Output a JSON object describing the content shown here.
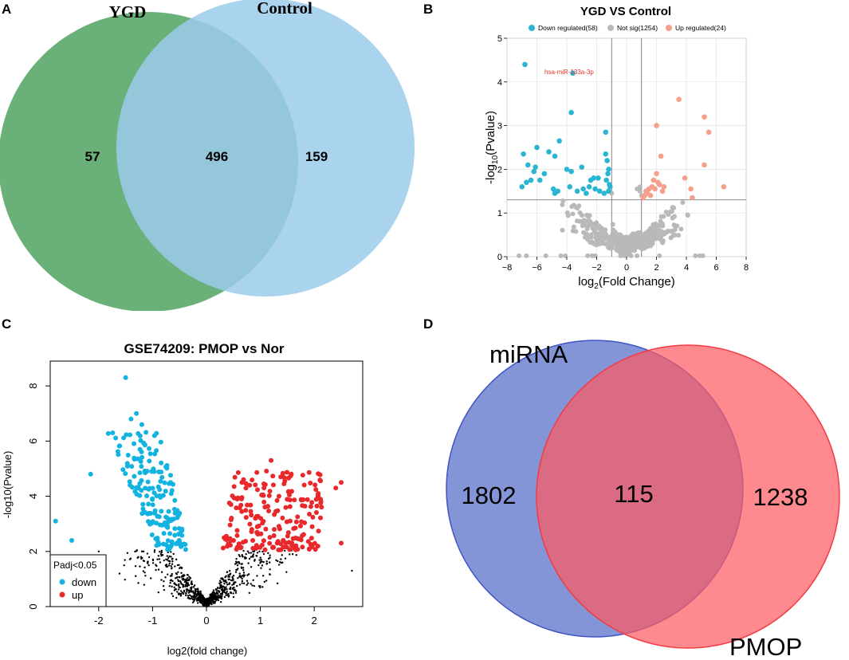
{
  "panels": {
    "a": "A",
    "b": "B",
    "c": "C",
    "d": "D"
  },
  "chart_data": [
    {
      "panel": "A",
      "type": "venn",
      "sets": [
        {
          "name": "YGD",
          "only": "57",
          "color": "#62ad72"
        },
        {
          "name": "Control",
          "only": "159",
          "color": "#9bcbea"
        }
      ],
      "intersection": "496"
    },
    {
      "panel": "B",
      "type": "scatter",
      "title": "YGD VS Control",
      "xlabel": "log2(Fold Change)",
      "ylabel": "-log10(Pvalue)",
      "xlim": [
        -8,
        8
      ],
      "ylim": [
        0,
        5
      ],
      "xticks": [
        "−8",
        "−6",
        "−4",
        "−2",
        "0",
        "2",
        "4",
        "6",
        "8"
      ],
      "yticks": [
        "0",
        "1",
        "2",
        "3",
        "4",
        "5"
      ],
      "thresholds": {
        "y": 1.3,
        "x": [
          -1,
          1
        ]
      },
      "legend": [
        {
          "label": "Down regulated(58)",
          "color": "#2bb5d3"
        },
        {
          "label": "Not sig(1254)",
          "color": "#b9b9b9"
        },
        {
          "label": "Up regulated(24)",
          "color": "#f4a08a"
        }
      ],
      "annotation": {
        "text": "hsa-miR-133a-3p",
        "x": -3.5,
        "y": 4.2,
        "color": "#e8322b"
      },
      "series": [
        {
          "name": "down",
          "color": "#2bb5d3",
          "points": [
            [
              -6.8,
              4.4
            ],
            [
              -3.6,
              4.2
            ],
            [
              -3.7,
              3.3
            ],
            [
              -1.4,
              2.85
            ],
            [
              -6.0,
              2.5
            ],
            [
              -4.5,
              2.65
            ],
            [
              -4.8,
              2.3
            ],
            [
              -5.2,
              2.4
            ],
            [
              -6.9,
              2.35
            ],
            [
              -6.6,
              2.1
            ],
            [
              -6.1,
              2.05
            ],
            [
              -6.2,
              1.95
            ],
            [
              -5.5,
              1.9
            ],
            [
              -4.0,
              2.0
            ],
            [
              -3.7,
              1.95
            ],
            [
              -3.0,
              2.05
            ],
            [
              -1.4,
              2.35
            ],
            [
              -1.3,
              2.2
            ],
            [
              -1.2,
              2.0
            ],
            [
              -1.25,
              1.9
            ],
            [
              -1.35,
              1.75
            ],
            [
              -1.15,
              1.65
            ],
            [
              -1.1,
              1.6
            ],
            [
              -1.2,
              1.5
            ],
            [
              -2.4,
              1.75
            ],
            [
              -2.2,
              1.8
            ],
            [
              -1.9,
              1.8
            ],
            [
              -6.4,
              1.75
            ],
            [
              -5.8,
              1.75
            ],
            [
              -6.7,
              1.7
            ],
            [
              -4.9,
              1.55
            ],
            [
              -4.6,
              1.5
            ],
            [
              -4.8,
              1.45
            ],
            [
              -2.9,
              1.55
            ],
            [
              -2.5,
              1.6
            ],
            [
              -2.1,
              1.55
            ],
            [
              -1.8,
              1.5
            ],
            [
              -1.5,
              1.45
            ],
            [
              -7.0,
              1.6
            ],
            [
              -3.8,
              1.6
            ],
            [
              -3.3,
              1.5
            ],
            [
              -2.7,
              1.45
            ]
          ]
        },
        {
          "name": "up",
          "color": "#f4a08a",
          "points": [
            [
              3.5,
              3.6
            ],
            [
              5.2,
              3.2
            ],
            [
              5.5,
              2.85
            ],
            [
              2.0,
              3.0
            ],
            [
              2.3,
              2.3
            ],
            [
              5.2,
              2.1
            ],
            [
              2.0,
              1.9
            ],
            [
              1.8,
              1.75
            ],
            [
              1.7,
              1.6
            ],
            [
              2.2,
              1.65
            ],
            [
              2.4,
              1.5
            ],
            [
              1.3,
              1.5
            ],
            [
              1.2,
              1.4
            ],
            [
              1.1,
              1.35
            ],
            [
              1.5,
              1.55
            ],
            [
              6.5,
              1.6
            ],
            [
              4.3,
              1.55
            ],
            [
              3.9,
              1.8
            ],
            [
              4.4,
              1.35
            ],
            [
              2.1,
              1.7
            ],
            [
              1.4,
              1.45
            ],
            [
              1.9,
              1.55
            ],
            [
              2.5,
              1.6
            ],
            [
              1.6,
              1.4
            ]
          ]
        }
      ]
    },
    {
      "panel": "C",
      "type": "scatter",
      "title": "GSE74209: PMOP vs Nor",
      "xlabel": "log2(fold change)",
      "ylabel": "-log10(Pvalue)",
      "xlim": [
        -2.9,
        2.9
      ],
      "ylim": [
        0,
        8.9
      ],
      "xticks": [
        "-2",
        "-1",
        "0",
        "1",
        "2"
      ],
      "yticks": [
        "0",
        "2",
        "4",
        "6",
        "8"
      ],
      "legend_title": "Padj<0.05",
      "legend": [
        {
          "label": "down",
          "color": "#13b3e0"
        },
        {
          "label": "up",
          "color": "#e8282b"
        }
      ],
      "series": [
        {
          "name": "down",
          "color": "#13b3e0",
          "outliers": [
            [
              -1.5,
              8.3
            ],
            [
              -2.8,
              3.1
            ],
            [
              -2.5,
              2.4
            ],
            [
              -2.15,
              4.8
            ],
            [
              -1.3,
              7.0
            ],
            [
              -1.4,
              6.8
            ],
            [
              -1.2,
              6.6
            ]
          ]
        },
        {
          "name": "up",
          "color": "#e8282b",
          "outliers": [
            [
              1.2,
              5.3
            ],
            [
              2.5,
              4.5
            ],
            [
              2.4,
              4.3
            ],
            [
              2.5,
              2.3
            ]
          ]
        },
        {
          "name": "ns",
          "color": "#000000"
        }
      ]
    },
    {
      "panel": "D",
      "type": "venn",
      "sets": [
        {
          "name": "miRNA",
          "only": "1802",
          "color": "#6d83cf"
        },
        {
          "name": "PMOP",
          "only": "1238",
          "color": "#fe7b7f"
        }
      ],
      "intersection": "115"
    }
  ]
}
